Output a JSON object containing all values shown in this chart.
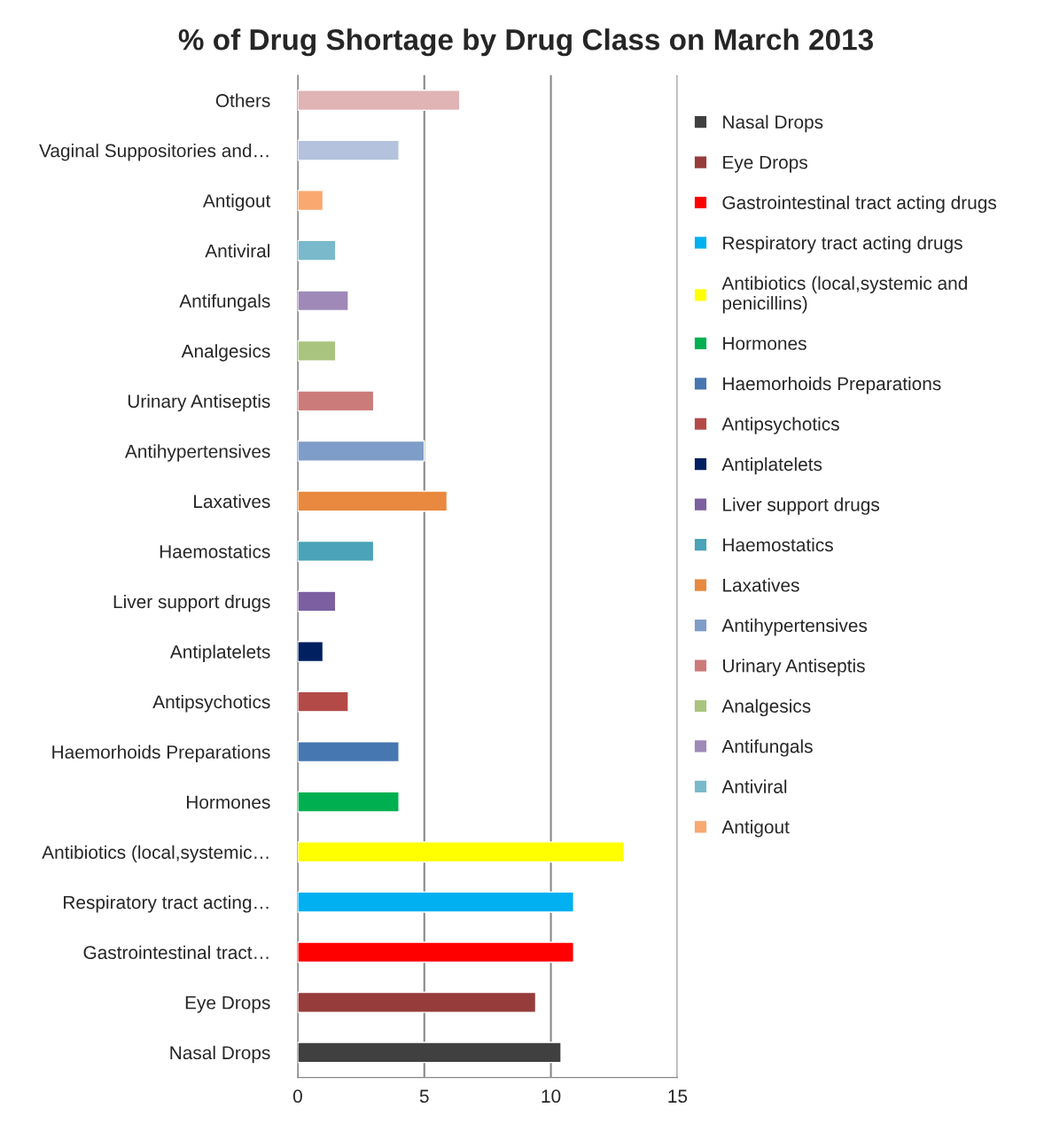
{
  "chart_data": {
    "type": "bar",
    "orientation": "horizontal",
    "title": "% of Drug Shortage by Drug Class on March 2013",
    "categories": [
      "Others",
      "Vaginal Suppositories and…",
      "Antigout",
      "Antiviral",
      "Antifungals",
      "Analgesics",
      "Urinary Antiseptis",
      "Antihypertensives",
      "Laxatives",
      "Haemostatics",
      "Liver support drugs",
      "Antiplatelets",
      "Antipsychotics",
      "Haemorhoids Preparations",
      "Hormones",
      "Antibiotics (local,systemic…",
      "Respiratory tract acting…",
      "Gastrointestinal tract…",
      "Eye Drops",
      "Nasal Drops"
    ],
    "series": [
      {
        "name": "Nasal Drops",
        "color": "#404040",
        "values": [
          null,
          null,
          null,
          null,
          null,
          null,
          null,
          null,
          null,
          null,
          null,
          null,
          null,
          null,
          null,
          null,
          null,
          null,
          null,
          10.4
        ]
      },
      {
        "name": "Eye Drops",
        "color": "#963c3a",
        "values": [
          null,
          null,
          null,
          null,
          null,
          null,
          null,
          null,
          null,
          null,
          null,
          null,
          null,
          null,
          null,
          null,
          null,
          null,
          9.4,
          null
        ]
      },
      {
        "name": "Gastrointestinal tract acting drugs",
        "color": "#ff0000",
        "values": [
          null,
          null,
          null,
          null,
          null,
          null,
          null,
          null,
          null,
          null,
          null,
          null,
          null,
          null,
          null,
          null,
          null,
          10.9,
          null,
          null
        ]
      },
      {
        "name": "Respiratory tract acting drugs",
        "color": "#00b0f0",
        "values": [
          null,
          null,
          null,
          null,
          null,
          null,
          null,
          null,
          null,
          null,
          null,
          null,
          null,
          null,
          null,
          null,
          10.9,
          null,
          null,
          null
        ]
      },
      {
        "name": "Antibiotics (local,systemic and penicillins)",
        "color": "#ffff00",
        "values": [
          null,
          null,
          null,
          null,
          null,
          null,
          null,
          null,
          null,
          null,
          null,
          null,
          null,
          null,
          null,
          12.9,
          null,
          null,
          null,
          null
        ]
      },
      {
        "name": "Hormones",
        "color": "#00b050",
        "values": [
          null,
          null,
          null,
          null,
          null,
          null,
          null,
          null,
          null,
          null,
          null,
          null,
          null,
          null,
          4,
          null,
          null,
          null,
          null,
          null
        ]
      },
      {
        "name": "Haemorhoids Preparations",
        "color": "#4677b0",
        "values": [
          null,
          null,
          null,
          null,
          null,
          null,
          null,
          null,
          null,
          null,
          null,
          null,
          null,
          4,
          null,
          null,
          null,
          null,
          null,
          null
        ]
      },
      {
        "name": "Antipsychotics",
        "color": "#b34a47",
        "values": [
          null,
          null,
          null,
          null,
          null,
          null,
          null,
          null,
          null,
          null,
          null,
          null,
          2,
          null,
          null,
          null,
          null,
          null,
          null,
          null
        ]
      },
      {
        "name": "Antiplatelets",
        "color": "#002060",
        "values": [
          null,
          null,
          null,
          null,
          null,
          null,
          null,
          null,
          null,
          null,
          null,
          1,
          null,
          null,
          null,
          null,
          null,
          null,
          null,
          null
        ]
      },
      {
        "name": "Liver support drugs",
        "color": "#7b5fa0",
        "values": [
          null,
          null,
          null,
          null,
          null,
          null,
          null,
          null,
          null,
          null,
          1.5,
          null,
          null,
          null,
          null,
          null,
          null,
          null,
          null,
          null
        ]
      },
      {
        "name": "Haemostatics",
        "color": "#4aa3b8",
        "values": [
          null,
          null,
          null,
          null,
          null,
          null,
          null,
          null,
          null,
          3,
          null,
          null,
          null,
          null,
          null,
          null,
          null,
          null,
          null,
          null
        ]
      },
      {
        "name": "Laxatives",
        "color": "#e8893f",
        "values": [
          null,
          null,
          null,
          null,
          null,
          null,
          null,
          null,
          5.9,
          null,
          null,
          null,
          null,
          null,
          null,
          null,
          null,
          null,
          null,
          null
        ]
      },
      {
        "name": "Antihypertensives",
        "color": "#7f9dc9",
        "values": [
          null,
          null,
          null,
          null,
          null,
          null,
          null,
          5,
          null,
          null,
          null,
          null,
          null,
          null,
          null,
          null,
          null,
          null,
          null,
          null
        ]
      },
      {
        "name": "Urinary Antiseptis",
        "color": "#cc7b7b",
        "values": [
          null,
          null,
          null,
          null,
          null,
          null,
          3,
          null,
          null,
          null,
          null,
          null,
          null,
          null,
          null,
          null,
          null,
          null,
          null,
          null
        ]
      },
      {
        "name": "Analgesics",
        "color": "#a9c47f",
        "values": [
          null,
          null,
          null,
          null,
          null,
          1.5,
          null,
          null,
          null,
          null,
          null,
          null,
          null,
          null,
          null,
          null,
          null,
          null,
          null,
          null
        ]
      },
      {
        "name": "Antifungals",
        "color": "#9e89b8",
        "values": [
          null,
          null,
          null,
          null,
          2,
          null,
          null,
          null,
          null,
          null,
          null,
          null,
          null,
          null,
          null,
          null,
          null,
          null,
          null,
          null
        ]
      },
      {
        "name": "Antiviral",
        "color": "#7ab8cc",
        "values": [
          null,
          null,
          null,
          1.5,
          null,
          null,
          null,
          null,
          null,
          null,
          null,
          null,
          null,
          null,
          null,
          null,
          null,
          null,
          null,
          null
        ]
      },
      {
        "name": "Antigout",
        "color": "#f9a870",
        "values": [
          null,
          null,
          1,
          null,
          null,
          null,
          null,
          null,
          null,
          null,
          null,
          null,
          null,
          null,
          null,
          null,
          null,
          null,
          null,
          null
        ]
      },
      {
        "color": "#b4c2dd",
        "values": [
          null,
          4,
          null,
          null,
          null,
          null,
          null,
          null,
          null,
          null,
          null,
          null,
          null,
          null,
          null,
          null,
          null,
          null,
          null,
          null
        ]
      },
      {
        "color": "#e0b4b4",
        "values": [
          6.4,
          null,
          null,
          null,
          null,
          null,
          null,
          null,
          null,
          null,
          null,
          null,
          null,
          null,
          null,
          null,
          null,
          null,
          null,
          null
        ]
      }
    ],
    "xlim": [
      0,
      15
    ],
    "xticks": [
      0,
      5,
      10,
      15
    ],
    "grid": "x",
    "legend": "right"
  }
}
